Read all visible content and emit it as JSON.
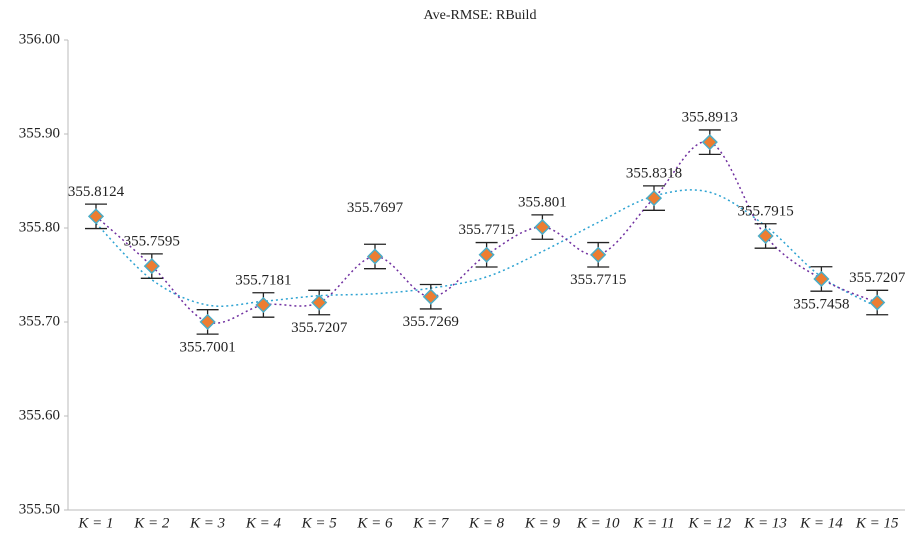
{
  "chart_data": {
    "type": "line",
    "title": "Ave-RMSE: RBuild",
    "categories": [
      "K = 1",
      "K = 2",
      "K = 3",
      "K = 4",
      "K = 5",
      "K = 6",
      "K = 7",
      "K = 8",
      "K = 9",
      "K = 10",
      "K = 11",
      "K = 12",
      "K = 13",
      "K = 14",
      "K = 15"
    ],
    "series": [
      {
        "color": "#7030a0",
        "marker_color": "#ed7d31",
        "marker_edge": "#4bacc6",
        "values": [
          355.8124,
          355.7595,
          355.7001,
          355.7181,
          355.7207,
          355.7697,
          355.7269,
          355.7715,
          355.801,
          355.7715,
          355.8318,
          355.8913,
          355.7915,
          355.7458,
          355.7207
        ],
        "errors": [
          0.013,
          0.013,
          0.013,
          0.013,
          0.013,
          0.013,
          0.013,
          0.013,
          0.013,
          0.013,
          0.013,
          0.013,
          0.013,
          0.013,
          0.013
        ]
      }
    ],
    "trendline": {
      "color": "#2ea3d2",
      "values": [
        355.805,
        355.745,
        355.718,
        355.722,
        355.728,
        355.73,
        355.736,
        355.748,
        355.775,
        355.806,
        355.834,
        355.838,
        355.802,
        355.748,
        355.716
      ]
    },
    "ylim": [
      355.5,
      356.0
    ],
    "yticks": [
      {
        "value": 355.5,
        "label": "355.50"
      },
      {
        "value": 355.6,
        "label": "355.60"
      },
      {
        "value": 355.7,
        "label": "355.70"
      },
      {
        "value": 355.8,
        "label": "355.80"
      },
      {
        "value": 355.9,
        "label": "355.90"
      },
      {
        "value": 356.0,
        "label": "356.00"
      }
    ]
  }
}
